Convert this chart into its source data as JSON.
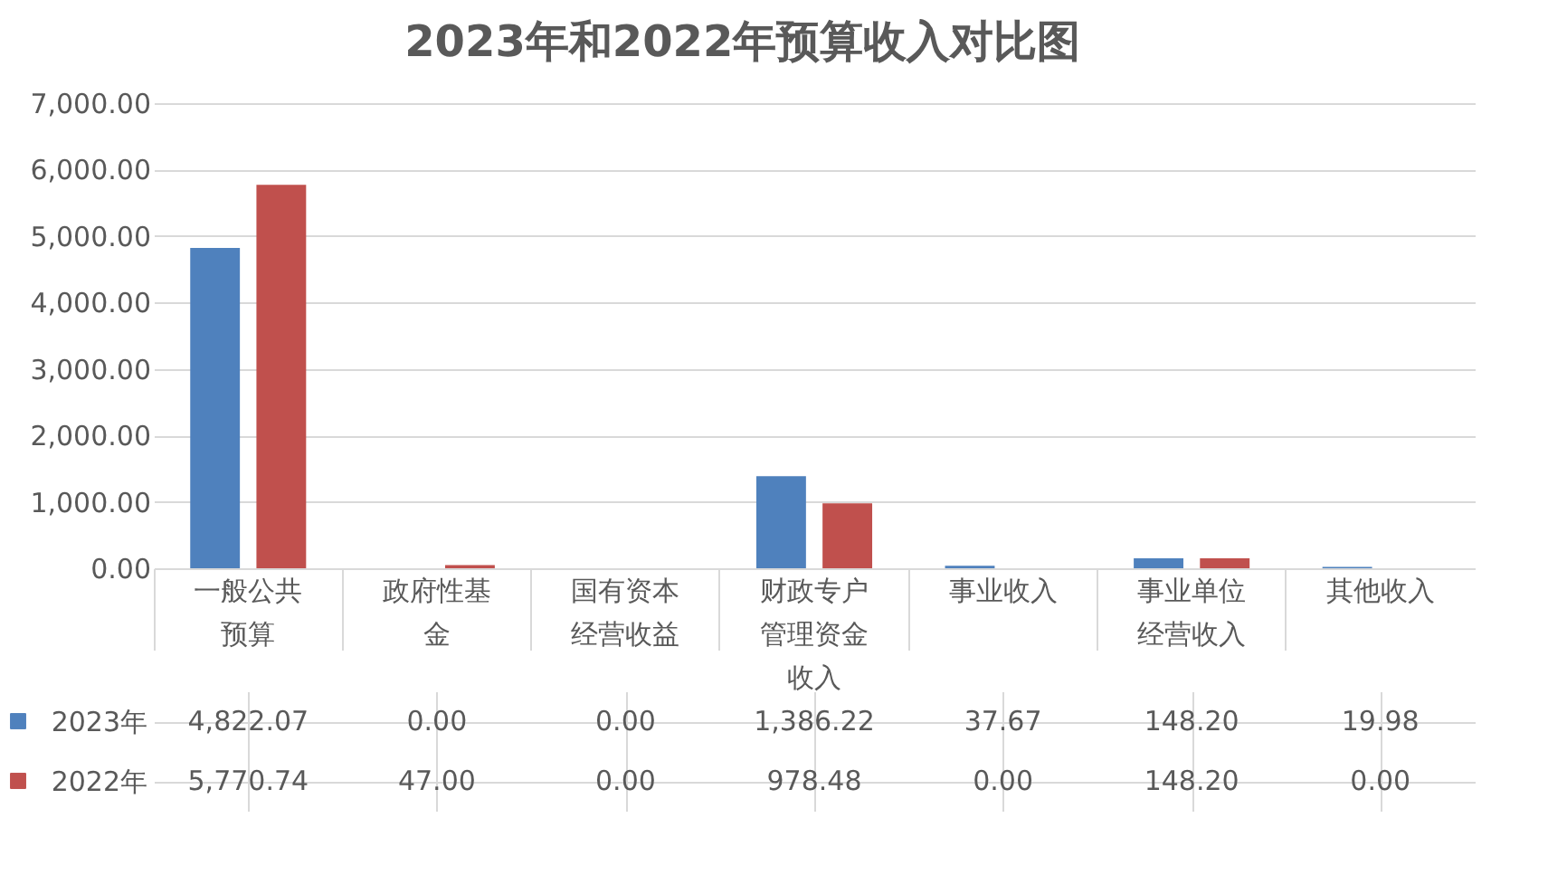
{
  "chart_data": {
    "type": "bar",
    "title": "2023年和2022年预算收入对比图",
    "categories": [
      "一般公共预算",
      "政府性基金",
      "国有资本经营收益",
      "财政专户管理资金收入",
      "事业收入",
      "事业单位经营收入",
      "其他收入"
    ],
    "series": [
      {
        "name": "2023年",
        "color": "#4f81bd",
        "values": [
          4822.07,
          0.0,
          0.0,
          1386.22,
          37.67,
          148.2,
          19.98
        ],
        "value_labels": [
          "4,822.07",
          "0.00",
          "0.00",
          "1,386.22",
          "37.67",
          "148.20",
          "19.98"
        ]
      },
      {
        "name": "2022年",
        "color": "#c0504d",
        "values": [
          5770.74,
          47.0,
          0.0,
          978.48,
          0.0,
          148.2,
          0.0
        ],
        "value_labels": [
          "5,770.74",
          "47.00",
          "0.00",
          "978.48",
          "0.00",
          "148.20",
          "0.00"
        ]
      }
    ],
    "ylim": [
      0,
      7000
    ],
    "yticks": [
      {
        "value": 0,
        "label": "0.00"
      },
      {
        "value": 1000,
        "label": "1,000.00"
      },
      {
        "value": 2000,
        "label": "2,000.00"
      },
      {
        "value": 3000,
        "label": "3,000.00"
      },
      {
        "value": 4000,
        "label": "4,000.00"
      },
      {
        "value": 5000,
        "label": "5,000.00"
      },
      {
        "value": 6000,
        "label": "6,000.00"
      },
      {
        "value": 7000,
        "label": "7,000.00"
      }
    ],
    "grid": "y",
    "legend": "bottom"
  }
}
